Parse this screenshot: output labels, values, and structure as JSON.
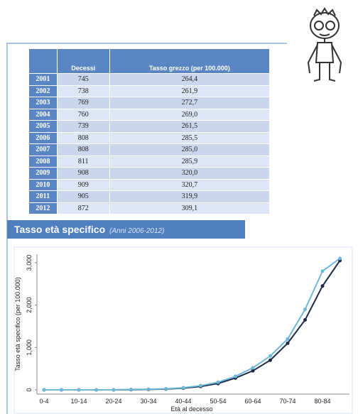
{
  "table": {
    "columns": [
      "Decessi",
      "Tasso grezzo (per 100.000)"
    ],
    "rows": [
      [
        "2001",
        "745",
        "264,4"
      ],
      [
        "2002",
        "738",
        "261,9"
      ],
      [
        "2003",
        "769",
        "272,7"
      ],
      [
        "2004",
        "760",
        "269,0"
      ],
      [
        "2005",
        "739",
        "261,5"
      ],
      [
        "2006",
        "808",
        "285,5"
      ],
      [
        "2007",
        "808",
        "285,0"
      ],
      [
        "2008",
        "811",
        "285,9"
      ],
      [
        "2009",
        "908",
        "320,0"
      ],
      [
        "2010",
        "909",
        "320,7"
      ],
      [
        "2011",
        "905",
        "319,9"
      ],
      [
        "2012",
        "872",
        "309,1"
      ]
    ]
  },
  "banner": {
    "title": "Tasso età specifico",
    "subtitle": "(Anni 2006-2012)"
  },
  "chart_data": {
    "type": "line",
    "x_label": "Età al decesso",
    "y_label": "Tasso età specifico (per 100.000)",
    "categories": [
      "0-4",
      null,
      "10-14",
      null,
      "20-24",
      null,
      "30-34",
      null,
      "40-44",
      null,
      "50-54",
      null,
      "60-64",
      null,
      "70-74",
      null,
      "80-84",
      null
    ],
    "series": [
      {
        "color": "#1a2a44",
        "values": [
          0,
          0,
          0,
          0,
          0,
          5,
          10,
          20,
          40,
          80,
          150,
          280,
          450,
          700,
          1100,
          1650,
          2450,
          3050
        ]
      },
      {
        "color": "#6fb7d9",
        "values": [
          0,
          0,
          0,
          0,
          0,
          10,
          15,
          25,
          50,
          100,
          180,
          320,
          520,
          800,
          1200,
          1900,
          2800,
          3100
        ]
      }
    ],
    "ylim": [
      -100,
      3200
    ],
    "yticks": [
      0,
      {
        "value": 1000,
        "label": "1,000"
      },
      {
        "value": 2000,
        "label": "2,000"
      },
      {
        "value": 3000,
        "label": "3,000"
      }
    ]
  }
}
